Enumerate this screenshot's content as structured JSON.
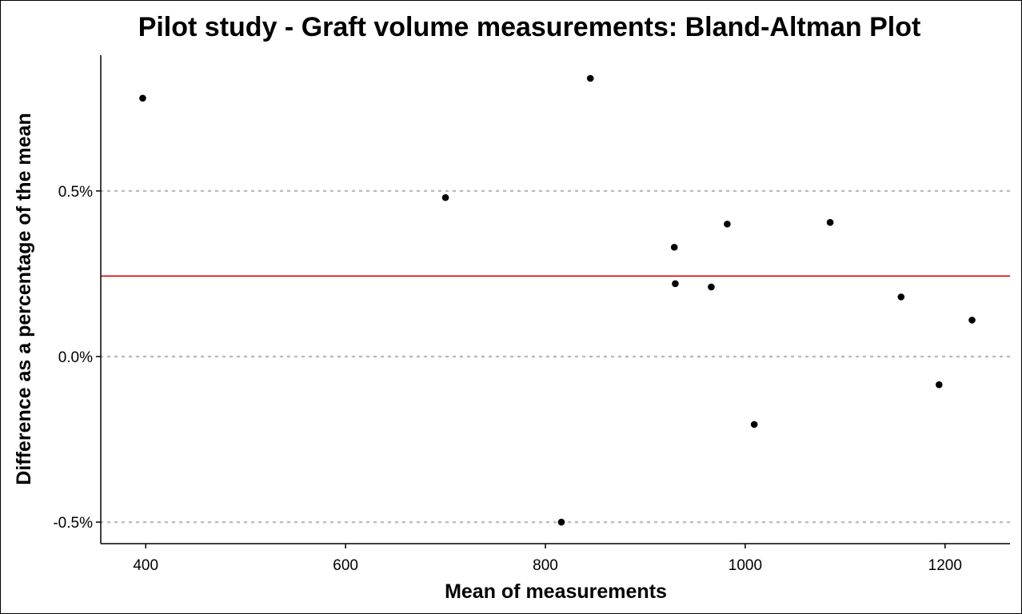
{
  "chart_data": {
    "type": "scatter",
    "title": "Pilot study - Graft volume measurements: Bland-Altman Plot",
    "xlabel": "Mean of measurements",
    "ylabel": "Difference as a percentage of the mean",
    "xlim": [
      355,
      1265
    ],
    "ylim": [
      -0.565,
      0.91
    ],
    "x_ticks": [
      {
        "value": 400,
        "label": "400"
      },
      {
        "value": 600,
        "label": "600"
      },
      {
        "value": 800,
        "label": "800"
      },
      {
        "value": 1000,
        "label": "1000"
      },
      {
        "value": 1200,
        "label": "1200"
      }
    ],
    "y_ticks": [
      {
        "value": 0.5,
        "label": "0.5%"
      },
      {
        "value": 0.0,
        "label": "0.0%"
      },
      {
        "value": -0.5,
        "label": "-0.5%"
      }
    ],
    "grid": {
      "horizontal_dotted_at": [
        0.5,
        0.0,
        -0.5
      ],
      "vertical": false
    },
    "reference_line": {
      "y": 0.243,
      "color": "#e00000"
    },
    "point_color": "#000000",
    "points": [
      {
        "x": 397,
        "y": 0.78
      },
      {
        "x": 700,
        "y": 0.48
      },
      {
        "x": 816,
        "y": -0.5
      },
      {
        "x": 845,
        "y": 0.84
      },
      {
        "x": 929,
        "y": 0.33
      },
      {
        "x": 930,
        "y": 0.22
      },
      {
        "x": 966,
        "y": 0.21
      },
      {
        "x": 982,
        "y": 0.4
      },
      {
        "x": 1009,
        "y": -0.205
      },
      {
        "x": 1085,
        "y": 0.405
      },
      {
        "x": 1156,
        "y": 0.18
      },
      {
        "x": 1194,
        "y": -0.085
      },
      {
        "x": 1227,
        "y": 0.11
      }
    ]
  }
}
